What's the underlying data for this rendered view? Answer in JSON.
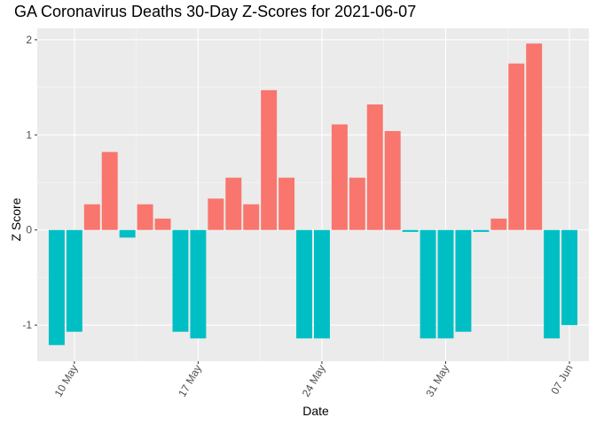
{
  "chart_data": {
    "type": "bar",
    "title": "GA Coronavirus Deaths 30-Day Z-Scores for 2021-06-07",
    "xlabel": "Date",
    "ylabel": "Z Score",
    "ylim": [
      -1.38,
      2.12
    ],
    "yticks": [
      -1,
      0,
      1,
      2
    ],
    "grid": true,
    "legend": "none",
    "x": [
      "2021-05-09",
      "2021-05-10",
      "2021-05-11",
      "2021-05-12",
      "2021-05-13",
      "2021-05-14",
      "2021-05-15",
      "2021-05-16",
      "2021-05-17",
      "2021-05-18",
      "2021-05-19",
      "2021-05-20",
      "2021-05-21",
      "2021-05-22",
      "2021-05-23",
      "2021-05-24",
      "2021-05-25",
      "2021-05-26",
      "2021-05-27",
      "2021-05-28",
      "2021-05-29",
      "2021-05-30",
      "2021-05-31",
      "2021-06-01",
      "2021-06-02",
      "2021-06-03",
      "2021-06-04",
      "2021-06-05",
      "2021-06-06",
      "2021-06-07"
    ],
    "values": [
      -1.21,
      -1.07,
      0.27,
      0.82,
      -0.08,
      0.27,
      0.12,
      -1.07,
      -1.14,
      0.33,
      0.55,
      0.27,
      1.47,
      0.55,
      -1.14,
      -1.14,
      1.11,
      0.55,
      1.32,
      1.04,
      -0.02,
      -1.14,
      -1.14,
      -1.07,
      -0.02,
      0.12,
      1.75,
      1.96,
      -1.14,
      -1.0
    ],
    "xticks": [
      {
        "date": "2021-05-10",
        "label": "10 May"
      },
      {
        "date": "2021-05-17",
        "label": "17 May"
      },
      {
        "date": "2021-05-24",
        "label": "24 May"
      },
      {
        "date": "2021-05-31",
        "label": "31 May"
      },
      {
        "date": "2021-06-07",
        "label": "07 Jun"
      }
    ],
    "colors": {
      "positive": "#F8766D",
      "negative": "#00BFC4",
      "panel": "#EBEBEB",
      "grid_major": "#FFFFFF",
      "axis_text": "#4D4D4D"
    }
  }
}
